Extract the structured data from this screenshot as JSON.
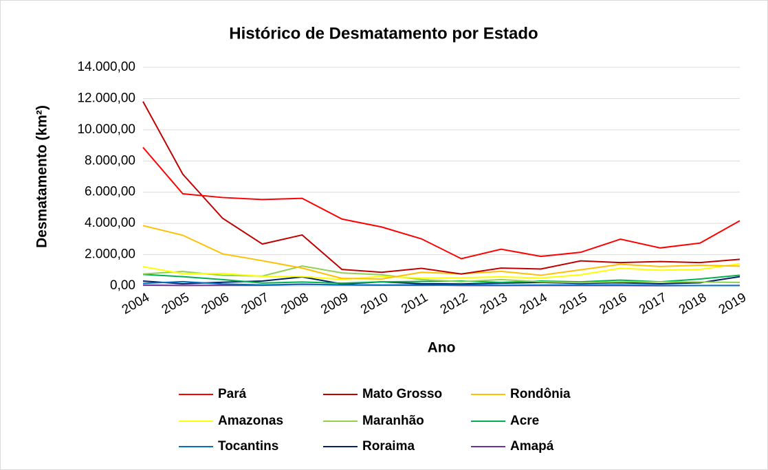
{
  "chart_data": {
    "type": "line",
    "title": "Histórico de Desmatamento por Estado",
    "x_label": "Ano",
    "y_label": "Desmatamento (km²)",
    "categories": [
      "2004",
      "2005",
      "2006",
      "2007",
      "2008",
      "2009",
      "2010",
      "2011",
      "2012",
      "2013",
      "2014",
      "2015",
      "2016",
      "2017",
      "2018",
      "2019"
    ],
    "ylim": [
      0,
      14000
    ],
    "yticks": [
      {
        "value": 0,
        "label": "0,00"
      },
      {
        "value": 2000,
        "label": "2.000,00"
      },
      {
        "value": 4000,
        "label": "4.000,00"
      },
      {
        "value": 6000,
        "label": "6.000,00"
      },
      {
        "value": 8000,
        "label": "8.000,00"
      },
      {
        "value": 10000,
        "label": "10.000,00"
      },
      {
        "value": 12000,
        "label": "12.000,00"
      },
      {
        "value": 14000,
        "label": "14.000,00"
      }
    ],
    "grid": true,
    "legend": "bottom",
    "series": [
      {
        "name": "Pará",
        "color": "#ff0000",
        "values": [
          8870,
          5900,
          5660,
          5530,
          5610,
          4280,
          3770,
          3010,
          1740,
          2350,
          1890,
          2150,
          2990,
          2430,
          2740,
          4170
        ]
      },
      {
        "name": "Mato Grosso",
        "color": "#c00000",
        "values": [
          11810,
          7150,
          4330,
          2680,
          3260,
          1050,
          870,
          1120,
          760,
          1140,
          1080,
          1600,
          1490,
          1560,
          1490,
          1700
        ]
      },
      {
        "name": "Rondônia",
        "color": "#ffc000",
        "values": [
          3860,
          3240,
          2050,
          1610,
          1140,
          480,
          440,
          870,
          770,
          930,
          680,
          1030,
          1380,
          1240,
          1320,
          1260
        ]
      },
      {
        "name": "Amazonas",
        "color": "#ffff00",
        "values": [
          1230,
          780,
          790,
          610,
          600,
          410,
          600,
          500,
          520,
          580,
          500,
          710,
          1130,
          1000,
          1050,
          1420
        ]
      },
      {
        "name": "Maranhão",
        "color": "#92d050",
        "values": [
          760,
          920,
          670,
          630,
          1270,
          830,
          710,
          400,
          270,
          400,
          260,
          210,
          260,
          260,
          250,
          220
        ]
      },
      {
        "name": "Acre",
        "color": "#00b050",
        "values": [
          730,
          590,
          400,
          180,
          250,
          170,
          260,
          280,
          310,
          220,
          310,
          260,
          370,
          260,
          440,
          680
        ]
      },
      {
        "name": "Tocantins",
        "color": "#0070c0",
        "values": [
          160,
          270,
          120,
          60,
          110,
          60,
          50,
          40,
          50,
          40,
          50,
          60,
          60,
          30,
          20,
          20
        ]
      },
      {
        "name": "Roraima",
        "color": "#002060",
        "values": [
          310,
          130,
          230,
          310,
          570,
          120,
          260,
          140,
          120,
          170,
          220,
          160,
          200,
          130,
          200,
          590
        ]
      },
      {
        "name": "Amapá",
        "color": "#7030a0",
        "values": [
          50,
          30,
          40,
          40,
          100,
          70,
          50,
          70,
          30,
          20,
          30,
          30,
          20,
          10,
          20,
          30
        ]
      }
    ]
  }
}
